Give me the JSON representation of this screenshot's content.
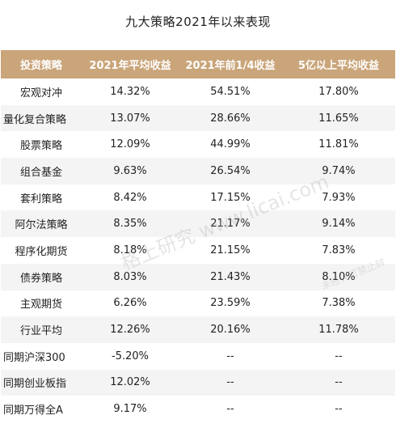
{
  "title": "九大策略2021年以来表现",
  "headers": [
    "投资策略",
    "2021年平均收益",
    "2021年前1/4收益",
    "5亿以上平均收益"
  ],
  "rows": [
    {
      "name": "宏观对冲",
      "avg": "14.32%",
      "q1": "54.51%",
      "big": "17.80%",
      "left": false
    },
    {
      "name": "量化复合策略",
      "avg": "13.07%",
      "q1": "28.66%",
      "big": "11.65%",
      "left": true
    },
    {
      "name": "股票策略",
      "avg": "12.09%",
      "q1": "44.99%",
      "big": "11.81%",
      "left": false
    },
    {
      "name": "组合基金",
      "avg": "9.63%",
      "q1": "26.54%",
      "big": "9.74%",
      "left": false
    },
    {
      "name": "套利策略",
      "avg": "8.42%",
      "q1": "17.15%",
      "big": "7.93%",
      "left": false
    },
    {
      "name": "阿尔法策略",
      "avg": "8.35%",
      "q1": "21.17%",
      "big": "9.14%",
      "left": false
    },
    {
      "name": "程序化期货",
      "avg": "8.18%",
      "q1": "21.15%",
      "big": "7.83%",
      "left": false
    },
    {
      "name": "债券策略",
      "avg": "8.03%",
      "q1": "21.43%",
      "big": "8.10%",
      "left": false
    },
    {
      "name": "主观期货",
      "avg": "6.26%",
      "q1": "23.59%",
      "big": "7.38%",
      "left": false
    },
    {
      "name": "行业平均",
      "avg": "12.26%",
      "q1": "20.16%",
      "big": "11.78%",
      "left": false
    },
    {
      "name": "同期沪深300",
      "avg": "-5.20%",
      "q1": "--",
      "big": "--",
      "left": true
    },
    {
      "name": "同期创业板指",
      "avg": "12.02%",
      "q1": "--",
      "big": "--",
      "left": true
    },
    {
      "name": "同期万得全A",
      "avg": "9.17%",
      "q1": "--",
      "big": "--",
      "left": true
    }
  ],
  "watermark": {
    "text": "格上研究 www.licai.com",
    "notice": "未经许可禁止转"
  },
  "colors": {
    "header_bg": "#caa57a",
    "header_text": "#ffffff",
    "stripe": "#f4f4f4"
  }
}
